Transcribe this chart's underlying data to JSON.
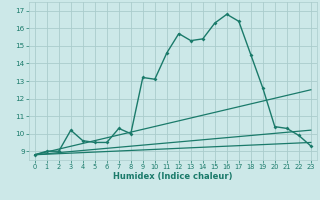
{
  "xlabel": "Humidex (Indice chaleur)",
  "bg_color": "#cce8e8",
  "grid_color": "#aacccc",
  "line_color": "#1a7a6a",
  "xlim": [
    -0.5,
    23.5
  ],
  "ylim": [
    8.5,
    17.5
  ],
  "xticks": [
    0,
    1,
    2,
    3,
    4,
    5,
    6,
    7,
    8,
    9,
    10,
    11,
    12,
    13,
    14,
    15,
    16,
    17,
    18,
    19,
    20,
    21,
    22,
    23
  ],
  "yticks": [
    9,
    10,
    11,
    12,
    13,
    14,
    15,
    16,
    17
  ],
  "line1_x": [
    0,
    1,
    2,
    3,
    4,
    5,
    6,
    7,
    8,
    9,
    10,
    11,
    12,
    13,
    14,
    15,
    16,
    17,
    18,
    19,
    20,
    21,
    22,
    23
  ],
  "line1_y": [
    8.8,
    9.0,
    9.0,
    10.2,
    9.6,
    9.5,
    9.5,
    10.3,
    10.0,
    13.2,
    13.1,
    14.6,
    15.7,
    15.3,
    15.4,
    16.3,
    16.8,
    16.4,
    14.5,
    12.6,
    10.4,
    10.3,
    9.9,
    9.3
  ],
  "line2_x": [
    0,
    23
  ],
  "line2_y": [
    8.8,
    12.5
  ],
  "line3_x": [
    0,
    23
  ],
  "line3_y": [
    8.8,
    10.2
  ],
  "line4_x": [
    0,
    23
  ],
  "line4_y": [
    8.8,
    9.5
  ]
}
